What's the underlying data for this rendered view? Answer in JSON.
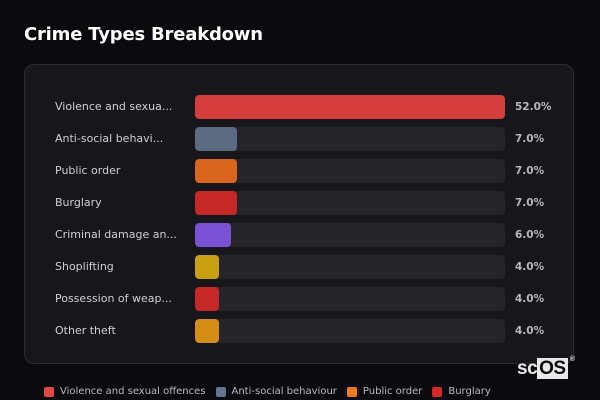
{
  "header": {
    "title": "Crime Types Breakdown"
  },
  "rows": [
    {
      "label": "Violence and sexua...",
      "value": "52.0%",
      "pct": 100,
      "color": "#d63e3e"
    },
    {
      "label": "Anti-social behavi...",
      "value": "7.0%",
      "pct": 13.5,
      "color": "#5c6b80"
    },
    {
      "label": "Public order",
      "value": "7.0%",
      "pct": 13.5,
      "color": "#d9661c"
    },
    {
      "label": "Burglary",
      "value": "7.0%",
      "pct": 13.5,
      "color": "#c62828"
    },
    {
      "label": "Criminal damage an...",
      "value": "6.0%",
      "pct": 11.5,
      "color": "#7b52d6"
    },
    {
      "label": "Shoplifting",
      "value": "4.0%",
      "pct": 7.7,
      "color": "#caa013"
    },
    {
      "label": "Possession of weap...",
      "value": "4.0%",
      "pct": 7.7,
      "color": "#c62828"
    },
    {
      "label": "Other theft",
      "value": "4.0%",
      "pct": 7.7,
      "color": "#d48d15"
    }
  ],
  "legend": [
    {
      "label": "Violence and sexual offences",
      "color": "#e04848"
    },
    {
      "label": "Anti-social behaviour",
      "color": "#647591"
    },
    {
      "label": "Public order",
      "color": "#f07a1a"
    },
    {
      "label": "Burglary",
      "color": "#d62828"
    }
  ],
  "logo": {
    "prefix": "sc",
    "highlight": "OS",
    "mark": "®"
  },
  "chart_data": {
    "type": "bar",
    "orientation": "horizontal",
    "title": "Crime Types Breakdown",
    "categories": [
      "Violence and sexual offences",
      "Anti-social behaviour",
      "Public order",
      "Burglary",
      "Criminal damage and arson",
      "Shoplifting",
      "Possession of weapons",
      "Other theft"
    ],
    "display_labels": [
      "Violence and sexua...",
      "Anti-social behavi...",
      "Public order",
      "Burglary",
      "Criminal damage an...",
      "Shoplifting",
      "Possession of weap...",
      "Other theft"
    ],
    "values": [
      52.0,
      7.0,
      7.0,
      7.0,
      6.0,
      4.0,
      4.0,
      4.0
    ],
    "value_unit": "%",
    "colors": [
      "#d63e3e",
      "#5c6b80",
      "#d9661c",
      "#c62828",
      "#7b52d6",
      "#caa013",
      "#c62828",
      "#d48d15"
    ],
    "legend": [
      "Violence and sexual offences",
      "Anti-social behaviour",
      "Public order",
      "Burglary"
    ],
    "legend_position": "bottom",
    "xlabel": "",
    "ylabel": "",
    "grid": false
  }
}
